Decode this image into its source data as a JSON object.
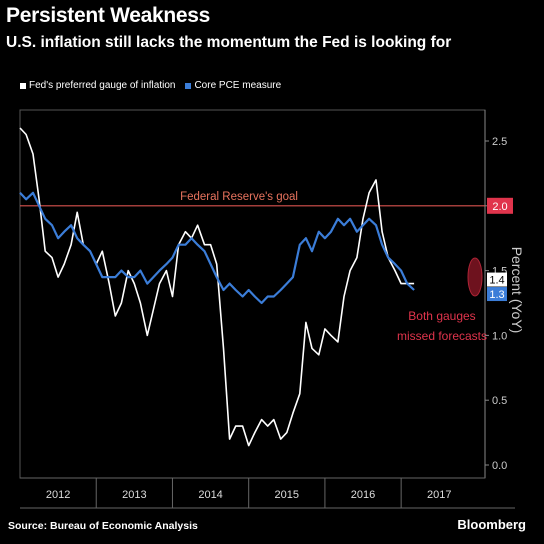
{
  "header": {
    "title": "Persistent Weakness",
    "subtitle": "U.S. inflation still lacks the momentum the Fed is looking for"
  },
  "legend": [
    {
      "label": "Fed's preferred gauge of inflation",
      "color": "#ffffff"
    },
    {
      "label": "Core PCE measure",
      "color": "#3b7dd8"
    }
  ],
  "footer": {
    "source": "Source: Bureau of Economic Analysis",
    "brand": "Bloomberg"
  },
  "chart_data": {
    "type": "line",
    "ylabel": "Percent (YoY)",
    "ylim": [
      0,
      2.8
    ],
    "xlim": [
      2011.5,
      2017.6
    ],
    "y_ticks": [
      "0.0",
      "0.5",
      "1.0",
      "1.5",
      "2.0",
      "2.5"
    ],
    "x_tick_labels": [
      {
        "label": "2012",
        "x": 2012.0
      },
      {
        "label": "2013",
        "x": 2013.0
      },
      {
        "label": "2014",
        "x": 2014.0
      },
      {
        "label": "2015",
        "x": 2015.0
      },
      {
        "label": "2016",
        "x": 2016.0
      },
      {
        "label": "2017",
        "x": 2017.0
      }
    ],
    "x_separators": [
      2012.5,
      2013.5,
      2014.5,
      2015.5,
      2016.5
    ],
    "reference_line": {
      "label": "Federal Reserve's goal",
      "value": 2.0,
      "tag": "2.0"
    },
    "annotation": "Both gauges missed forecasts",
    "series": [
      {
        "name": "Fed's preferred gauge of inflation",
        "color": "#ffffff",
        "end_label": "1.4",
        "points": [
          [
            2011.5,
            2.6
          ],
          [
            2011.58,
            2.55
          ],
          [
            2011.67,
            2.4
          ],
          [
            2011.75,
            2.05
          ],
          [
            2011.83,
            1.65
          ],
          [
            2011.92,
            1.6
          ],
          [
            2012.0,
            1.45
          ],
          [
            2012.08,
            1.55
          ],
          [
            2012.17,
            1.7
          ],
          [
            2012.25,
            1.95
          ],
          [
            2012.33,
            1.7
          ],
          [
            2012.42,
            1.65
          ],
          [
            2012.5,
            1.55
          ],
          [
            2012.58,
            1.65
          ],
          [
            2012.67,
            1.4
          ],
          [
            2012.75,
            1.15
          ],
          [
            2012.83,
            1.25
          ],
          [
            2012.92,
            1.5
          ],
          [
            2013.0,
            1.4
          ],
          [
            2013.08,
            1.25
          ],
          [
            2013.17,
            1.0
          ],
          [
            2013.25,
            1.2
          ],
          [
            2013.33,
            1.4
          ],
          [
            2013.42,
            1.5
          ],
          [
            2013.5,
            1.3
          ],
          [
            2013.58,
            1.7
          ],
          [
            2013.67,
            1.8
          ],
          [
            2013.75,
            1.75
          ],
          [
            2013.83,
            1.85
          ],
          [
            2013.92,
            1.7
          ],
          [
            2014.0,
            1.7
          ],
          [
            2014.08,
            1.55
          ],
          [
            2014.17,
            0.9
          ],
          [
            2014.25,
            0.2
          ],
          [
            2014.33,
            0.3
          ],
          [
            2014.42,
            0.3
          ],
          [
            2014.5,
            0.15
          ],
          [
            2014.58,
            0.25
          ],
          [
            2014.67,
            0.35
          ],
          [
            2014.75,
            0.3
          ],
          [
            2014.83,
            0.35
          ],
          [
            2014.92,
            0.2
          ],
          [
            2015.0,
            0.25
          ],
          [
            2015.08,
            0.4
          ],
          [
            2015.17,
            0.55
          ],
          [
            2015.25,
            1.1
          ],
          [
            2015.33,
            0.9
          ],
          [
            2015.42,
            0.85
          ],
          [
            2015.5,
            1.05
          ],
          [
            2015.58,
            1.0
          ],
          [
            2015.67,
            0.95
          ],
          [
            2015.75,
            1.3
          ],
          [
            2015.83,
            1.5
          ],
          [
            2015.92,
            1.6
          ],
          [
            2016.0,
            1.9
          ],
          [
            2016.08,
            2.1
          ],
          [
            2016.17,
            2.2
          ],
          [
            2016.25,
            1.8
          ],
          [
            2016.33,
            1.6
          ],
          [
            2016.42,
            1.5
          ],
          [
            2016.5,
            1.4
          ],
          [
            2016.58,
            1.4
          ],
          [
            2016.67,
            1.4
          ]
        ]
      },
      {
        "name": "Core PCE measure",
        "color": "#3b7dd8",
        "end_label": "1.3",
        "points": [
          [
            2011.5,
            2.1
          ],
          [
            2011.58,
            2.05
          ],
          [
            2011.67,
            2.1
          ],
          [
            2011.75,
            2.0
          ],
          [
            2011.83,
            1.9
          ],
          [
            2011.92,
            1.85
          ],
          [
            2012.0,
            1.75
          ],
          [
            2012.08,
            1.8
          ],
          [
            2012.17,
            1.85
          ],
          [
            2012.25,
            1.75
          ],
          [
            2012.33,
            1.7
          ],
          [
            2012.42,
            1.65
          ],
          [
            2012.5,
            1.55
          ],
          [
            2012.58,
            1.45
          ],
          [
            2012.67,
            1.45
          ],
          [
            2012.75,
            1.45
          ],
          [
            2012.83,
            1.5
          ],
          [
            2012.92,
            1.45
          ],
          [
            2013.0,
            1.45
          ],
          [
            2013.08,
            1.5
          ],
          [
            2013.17,
            1.4
          ],
          [
            2013.25,
            1.45
          ],
          [
            2013.33,
            1.5
          ],
          [
            2013.42,
            1.55
          ],
          [
            2013.5,
            1.6
          ],
          [
            2013.58,
            1.7
          ],
          [
            2013.67,
            1.7
          ],
          [
            2013.75,
            1.75
          ],
          [
            2013.83,
            1.7
          ],
          [
            2013.92,
            1.65
          ],
          [
            2014.0,
            1.55
          ],
          [
            2014.08,
            1.45
          ],
          [
            2014.17,
            1.35
          ],
          [
            2014.25,
            1.4
          ],
          [
            2014.33,
            1.35
          ],
          [
            2014.42,
            1.3
          ],
          [
            2014.5,
            1.35
          ],
          [
            2014.58,
            1.3
          ],
          [
            2014.67,
            1.25
          ],
          [
            2014.75,
            1.3
          ],
          [
            2014.83,
            1.3
          ],
          [
            2014.92,
            1.35
          ],
          [
            2015.0,
            1.4
          ],
          [
            2015.08,
            1.45
          ],
          [
            2015.17,
            1.7
          ],
          [
            2015.25,
            1.75
          ],
          [
            2015.33,
            1.65
          ],
          [
            2015.42,
            1.8
          ],
          [
            2015.5,
            1.75
          ],
          [
            2015.58,
            1.8
          ],
          [
            2015.67,
            1.9
          ],
          [
            2015.75,
            1.85
          ],
          [
            2015.83,
            1.9
          ],
          [
            2015.92,
            1.8
          ],
          [
            2016.0,
            1.85
          ],
          [
            2016.08,
            1.9
          ],
          [
            2016.17,
            1.85
          ],
          [
            2016.25,
            1.7
          ],
          [
            2016.33,
            1.6
          ],
          [
            2016.42,
            1.55
          ],
          [
            2016.5,
            1.5
          ],
          [
            2016.58,
            1.4
          ],
          [
            2016.67,
            1.35
          ]
        ]
      }
    ]
  }
}
